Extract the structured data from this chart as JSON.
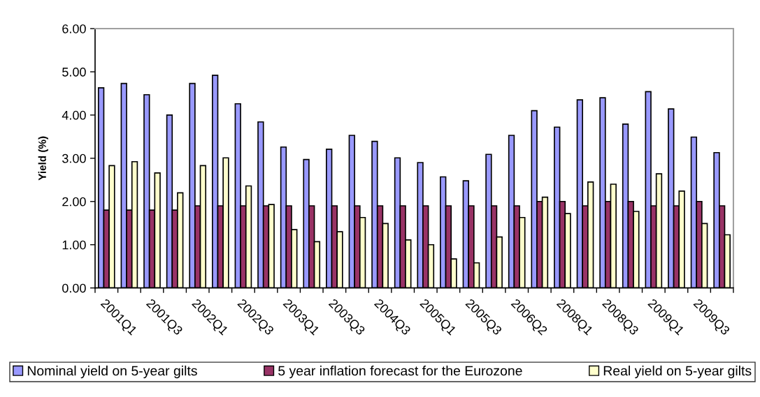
{
  "chart_data": {
    "type": "bar",
    "ylabel": "Yield (%)",
    "categories": [
      "2001Q1",
      null,
      "2001Q3",
      null,
      "2002Q1",
      null,
      "2002Q3",
      null,
      "2003Q1",
      null,
      "2003Q3",
      null,
      "2004Q3",
      null,
      "2005Q1",
      null,
      "2005Q3",
      null,
      "2006Q2",
      null,
      "2008Q1",
      null,
      "2008Q3",
      null,
      "2009Q1",
      null,
      "2009Q3",
      null
    ],
    "series": [
      {
        "name": "Nominal yield on 5-year gilts",
        "color": "#9999ff",
        "values": [
          4.63,
          4.73,
          4.47,
          4.0,
          4.73,
          4.92,
          4.26,
          3.84,
          3.26,
          2.97,
          3.21,
          3.53,
          3.39,
          3.01,
          2.9,
          2.57,
          2.48,
          3.09,
          3.53,
          4.1,
          3.72,
          4.35,
          4.4,
          3.79,
          4.54,
          4.14,
          3.49,
          3.13
        ]
      },
      {
        "name": "5 year inflation forecast for the Eurozone",
        "color": "#993366",
        "values": [
          1.8,
          1.8,
          1.8,
          1.8,
          1.9,
          1.9,
          1.9,
          1.9,
          1.9,
          1.9,
          1.9,
          1.9,
          1.9,
          1.9,
          1.9,
          1.9,
          1.9,
          1.9,
          1.9,
          2.0,
          2.0,
          1.9,
          2.0,
          2.0,
          1.9,
          1.9,
          2.0,
          1.9
        ]
      },
      {
        "name": "Real yield on 5-year gilts",
        "color": "#ffffcc",
        "values": [
          2.83,
          2.92,
          2.66,
          2.2,
          2.83,
          3.01,
          2.36,
          1.93,
          1.35,
          1.07,
          1.3,
          1.63,
          1.49,
          1.11,
          1.0,
          0.67,
          0.58,
          1.18,
          1.63,
          2.1,
          1.72,
          2.45,
          2.4,
          1.77,
          2.64,
          2.24,
          1.49,
          1.23
        ]
      }
    ],
    "ylim": [
      0,
      6
    ],
    "yticks": [
      {
        "value": 0,
        "label": "0.00"
      },
      {
        "value": 1,
        "label": "1.00"
      },
      {
        "value": 2,
        "label": "2.00"
      },
      {
        "value": 3,
        "label": "3.00"
      },
      {
        "value": 4,
        "label": "4.00"
      },
      {
        "value": 5,
        "label": "5.00"
      },
      {
        "value": 6,
        "label": "6.00"
      }
    ],
    "legend": "bottom"
  }
}
